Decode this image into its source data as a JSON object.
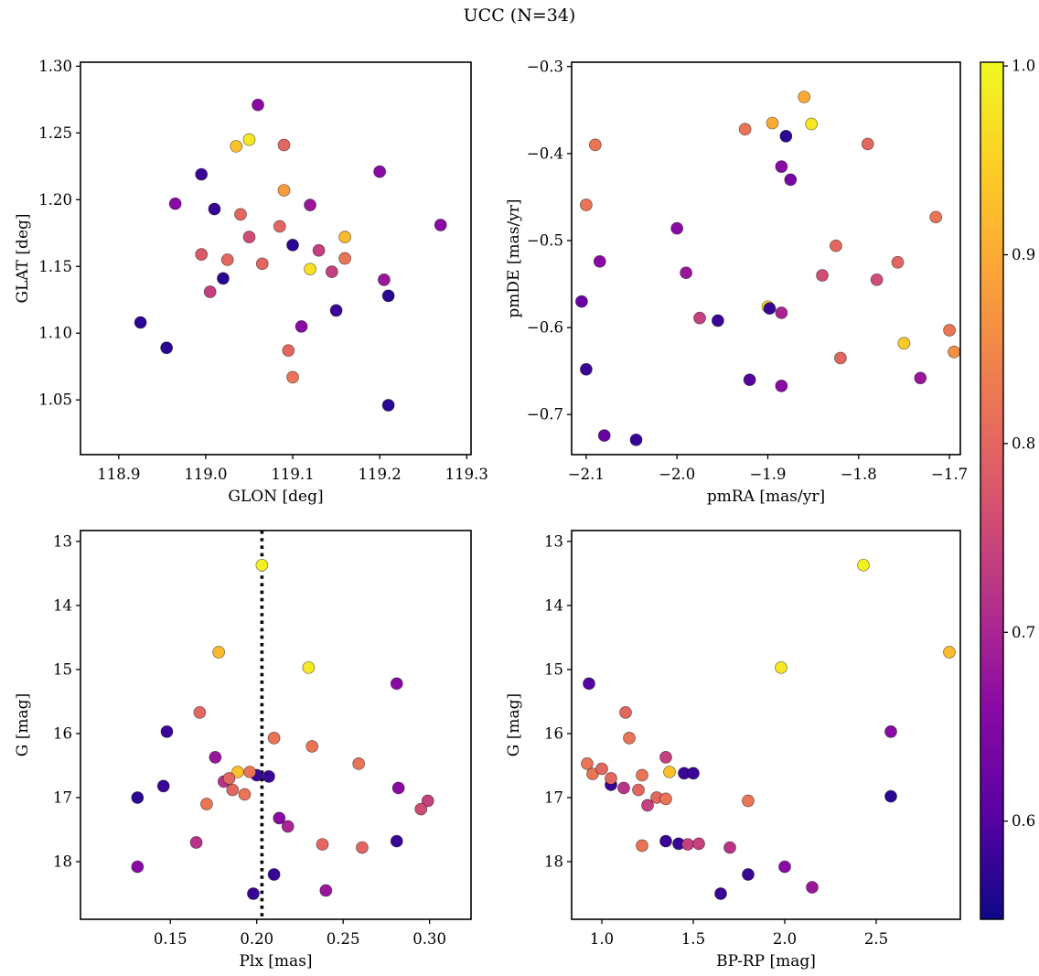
{
  "title": "UCC (N=34)",
  "colormap": {
    "name": "plasma",
    "anchors": [
      [
        0.0,
        "#0d0887"
      ],
      [
        0.125,
        "#5b02a3"
      ],
      [
        0.25,
        "#8b0aa5"
      ],
      [
        0.375,
        "#b83289"
      ],
      [
        0.5,
        "#d8576b"
      ],
      [
        0.625,
        "#ee7b51"
      ],
      [
        0.75,
        "#fba238"
      ],
      [
        0.875,
        "#fccd25"
      ],
      [
        1.0,
        "#f0f921"
      ]
    ]
  },
  "colorbar": {
    "vmin": 0.548,
    "vmax": 1.002,
    "ticks": [
      0.6,
      0.7,
      0.8,
      0.9,
      1.0
    ],
    "tick_labels": [
      "0.6",
      "0.7",
      "0.8",
      "0.9",
      "1.0"
    ]
  },
  "chart_data": [
    {
      "type": "scatter",
      "name": "glon-glat",
      "xlabel": "GLON [deg]",
      "ylabel": "GLAT [deg]",
      "xlim": [
        118.856,
        119.305
      ],
      "ylim": [
        1.009,
        1.303
      ],
      "xticks": [
        118.9,
        119.0,
        119.1,
        119.2,
        119.3
      ],
      "xtick_labels": [
        "118.9",
        "119.0",
        "119.1",
        "119.2",
        "119.3"
      ],
      "yticks": [
        1.05,
        1.1,
        1.15,
        1.2,
        1.25,
        1.3
      ],
      "ytick_labels": [
        "1.05",
        "1.10",
        "1.15",
        "1.20",
        "1.25",
        "1.30"
      ],
      "vline": null,
      "points": [
        [
          118.925,
          1.108,
          0.57
        ],
        [
          118.955,
          1.089,
          0.57
        ],
        [
          118.965,
          1.197,
          0.66
        ],
        [
          118.995,
          1.219,
          0.58
        ],
        [
          118.995,
          1.159,
          0.78
        ],
        [
          119.01,
          1.193,
          0.58
        ],
        [
          119.005,
          1.131,
          0.74
        ],
        [
          119.02,
          1.141,
          0.57
        ],
        [
          119.025,
          1.155,
          0.8
        ],
        [
          119.035,
          1.24,
          0.93
        ],
        [
          119.05,
          1.245,
          0.98
        ],
        [
          119.04,
          1.189,
          0.8
        ],
        [
          119.05,
          1.172,
          0.76
        ],
        [
          119.06,
          1.271,
          0.66
        ],
        [
          119.09,
          1.241,
          0.8
        ],
        [
          119.09,
          1.207,
          0.88
        ],
        [
          119.085,
          1.18,
          0.8
        ],
        [
          119.1,
          1.166,
          0.57
        ],
        [
          119.095,
          1.087,
          0.8
        ],
        [
          119.1,
          1.067,
          0.82
        ],
        [
          119.11,
          1.105,
          0.66
        ],
        [
          119.12,
          1.196,
          0.68
        ],
        [
          119.12,
          1.148,
          0.97
        ],
        [
          119.13,
          1.162,
          0.74
        ],
        [
          119.145,
          1.146,
          0.74
        ],
        [
          119.15,
          1.117,
          0.58
        ],
        [
          119.16,
          1.156,
          0.82
        ],
        [
          119.16,
          1.172,
          0.92
        ],
        [
          119.2,
          1.221,
          0.66
        ],
        [
          119.205,
          1.14,
          0.68
        ],
        [
          119.21,
          1.128,
          0.57
        ],
        [
          119.21,
          1.046,
          0.57
        ],
        [
          119.27,
          1.181,
          0.66
        ],
        [
          119.065,
          1.152,
          0.8
        ]
      ]
    },
    {
      "type": "scatter",
      "name": "pmra-pmde",
      "xlabel": "pmRA [mas/yr]",
      "ylabel": "pmDE [mas/yr]",
      "xlim": [
        -2.116,
        -1.688
      ],
      "ylim": [
        -0.746,
        -0.295
      ],
      "xticks": [
        -2.1,
        -2.0,
        -1.9,
        -1.8,
        -1.7
      ],
      "xtick_labels": [
        "−2.1",
        "−2.0",
        "−1.9",
        "−1.8",
        "−1.7"
      ],
      "yticks": [
        -0.3,
        -0.4,
        -0.5,
        -0.6,
        -0.7
      ],
      "ytick_labels": [
        "−0.3",
        "−0.4",
        "−0.5",
        "−0.6",
        "−0.7"
      ],
      "vline": null,
      "points": [
        [
          -2.09,
          -0.39,
          0.82
        ],
        [
          -2.1,
          -0.459,
          0.82
        ],
        [
          -2.105,
          -0.57,
          0.62
        ],
        [
          -2.085,
          -0.524,
          0.66
        ],
        [
          -2.1,
          -0.648,
          0.58
        ],
        [
          -2.08,
          -0.724,
          0.62
        ],
        [
          -2.045,
          -0.729,
          0.58
        ],
        [
          -2.0,
          -0.486,
          0.66
        ],
        [
          -1.99,
          -0.537,
          0.68
        ],
        [
          -1.975,
          -0.589,
          0.74
        ],
        [
          -1.955,
          -0.592,
          0.58
        ],
        [
          -1.925,
          -0.372,
          0.82
        ],
        [
          -1.92,
          -0.66,
          0.6
        ],
        [
          -1.9,
          -0.576,
          0.97
        ],
        [
          -1.898,
          -0.578,
          0.58
        ],
        [
          -1.885,
          -0.583,
          0.7
        ],
        [
          -1.885,
          -0.667,
          0.66
        ],
        [
          -1.895,
          -0.365,
          0.9
        ],
        [
          -1.88,
          -0.38,
          0.57
        ],
        [
          -1.885,
          -0.415,
          0.66
        ],
        [
          -1.875,
          -0.43,
          0.64
        ],
        [
          -1.86,
          -0.335,
          0.9
        ],
        [
          -1.852,
          -0.366,
          0.98
        ],
        [
          -1.84,
          -0.54,
          0.76
        ],
        [
          -1.825,
          -0.506,
          0.8
        ],
        [
          -1.82,
          -0.635,
          0.8
        ],
        [
          -1.79,
          -0.389,
          0.8
        ],
        [
          -1.78,
          -0.545,
          0.76
        ],
        [
          -1.757,
          -0.525,
          0.8
        ],
        [
          -1.75,
          -0.618,
          0.94
        ],
        [
          -1.732,
          -0.658,
          0.68
        ],
        [
          -1.715,
          -0.473,
          0.82
        ],
        [
          -1.7,
          -0.603,
          0.82
        ],
        [
          -1.695,
          -0.628,
          0.86
        ]
      ]
    },
    {
      "type": "scatter",
      "name": "plx-g",
      "xlabel": "Plx [mas]",
      "ylabel": "G [mag]",
      "xlim": [
        0.098,
        0.324
      ],
      "ylim": [
        18.9,
        12.83
      ],
      "xticks": [
        0.15,
        0.2,
        0.25,
        0.3
      ],
      "xtick_labels": [
        "0.15",
        "0.20",
        "0.25",
        "0.30"
      ],
      "yticks": [
        13,
        14,
        15,
        16,
        17,
        18
      ],
      "ytick_labels": [
        "13",
        "14",
        "15",
        "16",
        "17",
        "18"
      ],
      "vline": {
        "x": 0.203,
        "style": "dotted",
        "color": "#000000",
        "width": 3.6
      },
      "points": [
        [
          0.203,
          13.37,
          0.99
        ],
        [
          0.178,
          14.73,
          0.92
        ],
        [
          0.23,
          14.97,
          0.98
        ],
        [
          0.281,
          15.22,
          0.66
        ],
        [
          0.148,
          15.97,
          0.58
        ],
        [
          0.167,
          15.67,
          0.8
        ],
        [
          0.21,
          16.07,
          0.82
        ],
        [
          0.232,
          16.2,
          0.82
        ],
        [
          0.259,
          16.47,
          0.82
        ],
        [
          0.176,
          16.37,
          0.68
        ],
        [
          0.189,
          16.6,
          0.93
        ],
        [
          0.2,
          16.65,
          0.58
        ],
        [
          0.207,
          16.67,
          0.58
        ],
        [
          0.181,
          16.75,
          0.72
        ],
        [
          0.186,
          16.88,
          0.8
        ],
        [
          0.193,
          16.95,
          0.82
        ],
        [
          0.131,
          17.0,
          0.57
        ],
        [
          0.146,
          16.82,
          0.58
        ],
        [
          0.171,
          17.1,
          0.82
        ],
        [
          0.282,
          16.85,
          0.66
        ],
        [
          0.299,
          17.05,
          0.74
        ],
        [
          0.295,
          17.18,
          0.76
        ],
        [
          0.213,
          17.32,
          0.66
        ],
        [
          0.238,
          17.73,
          0.8
        ],
        [
          0.261,
          17.78,
          0.8
        ],
        [
          0.165,
          17.7,
          0.72
        ],
        [
          0.281,
          17.68,
          0.58
        ],
        [
          0.131,
          18.08,
          0.66
        ],
        [
          0.21,
          18.2,
          0.58
        ],
        [
          0.24,
          18.45,
          0.68
        ],
        [
          0.198,
          18.5,
          0.58
        ],
        [
          0.184,
          16.7,
          0.8
        ],
        [
          0.196,
          16.6,
          0.82
        ],
        [
          0.218,
          17.45,
          0.7
        ]
      ]
    },
    {
      "type": "scatter",
      "name": "bprp-g",
      "xlabel": "BP-RP [mag]",
      "ylabel": "G [mag]",
      "xlim": [
        0.835,
        2.96
      ],
      "ylim": [
        18.9,
        12.83
      ],
      "xticks": [
        1.0,
        1.5,
        2.0,
        2.5
      ],
      "xtick_labels": [
        "1.0",
        "1.5",
        "2.0",
        "2.5"
      ],
      "yticks": [
        13,
        14,
        15,
        16,
        17,
        18
      ],
      "ytick_labels": [
        "13",
        "14",
        "15",
        "16",
        "17",
        "18"
      ],
      "vline": null,
      "points": [
        [
          2.43,
          13.37,
          0.99
        ],
        [
          2.9,
          14.73,
          0.92
        ],
        [
          1.98,
          14.97,
          0.98
        ],
        [
          0.93,
          15.22,
          0.6
        ],
        [
          2.58,
          15.97,
          0.66
        ],
        [
          1.13,
          15.67,
          0.8
        ],
        [
          1.15,
          16.07,
          0.82
        ],
        [
          0.92,
          16.47,
          0.82
        ],
        [
          1.05,
          16.8,
          0.58
        ],
        [
          1.35,
          16.37,
          0.74
        ],
        [
          1.37,
          16.6,
          0.93
        ],
        [
          1.45,
          16.62,
          0.58
        ],
        [
          1.5,
          16.62,
          0.58
        ],
        [
          0.95,
          16.63,
          0.82
        ],
        [
          1.05,
          16.7,
          0.8
        ],
        [
          1.12,
          16.85,
          0.72
        ],
        [
          1.2,
          16.88,
          0.8
        ],
        [
          1.22,
          16.65,
          0.82
        ],
        [
          1.3,
          17.0,
          0.8
        ],
        [
          1.35,
          17.02,
          0.82
        ],
        [
          1.25,
          17.12,
          0.74
        ],
        [
          1.8,
          17.05,
          0.82
        ],
        [
          2.58,
          16.98,
          0.57
        ],
        [
          1.22,
          17.75,
          0.82
        ],
        [
          1.35,
          17.68,
          0.58
        ],
        [
          1.42,
          17.72,
          0.58
        ],
        [
          1.47,
          17.73,
          0.74
        ],
        [
          1.53,
          17.72,
          0.74
        ],
        [
          1.7,
          17.78,
          0.72
        ],
        [
          2.0,
          18.08,
          0.66
        ],
        [
          1.8,
          18.2,
          0.58
        ],
        [
          2.15,
          18.4,
          0.68
        ],
        [
          1.65,
          18.5,
          0.58
        ],
        [
          1.0,
          16.55,
          0.8
        ]
      ]
    }
  ]
}
